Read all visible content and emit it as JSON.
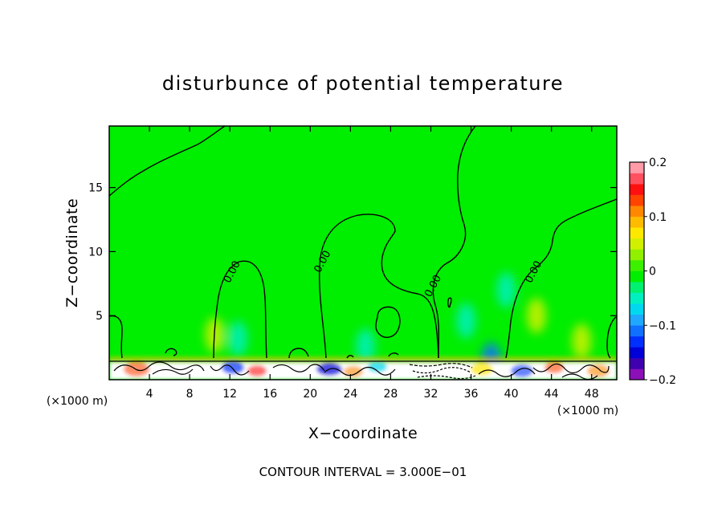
{
  "chart_data": {
    "type": "heatmap",
    "title": "disturbunce of potential temperature",
    "xlabel": "X−coordinate",
    "ylabel": "Z−coordinate",
    "x_unit": "(×1000 m)",
    "y_unit": "(×1000 m)",
    "xlim": [
      0,
      50.5
    ],
    "ylim": [
      0,
      19.8
    ],
    "x_ticks": [
      4,
      8,
      12,
      16,
      20,
      24,
      28,
      32,
      36,
      40,
      44,
      48
    ],
    "y_ticks": [
      5,
      10,
      15
    ],
    "background_value": 0.0,
    "contour_interval_text": "CONTOUR INTERVAL = 3.000E−01",
    "contour_labels": [
      {
        "text": "0.00",
        "x": 12.5,
        "z": 8.3
      },
      {
        "text": "0.00",
        "x": 21.5,
        "z": 9.1
      },
      {
        "text": "0.00",
        "x": 32.5,
        "z": 7.2
      },
      {
        "text": "0.00",
        "x": 42.5,
        "z": 8.3
      }
    ],
    "colorbar": {
      "min": -0.2,
      "max": 0.2,
      "tick_values": [
        0.2,
        0.1,
        0,
        -0.1,
        -0.2
      ],
      "tick_labels": [
        "0.2",
        "0.1",
        "0",
        "−0.1",
        "−0.2"
      ],
      "colors": [
        "#8b10b8",
        "#3f00b0",
        "#0000d8",
        "#0030ff",
        "#1070ff",
        "#20a8ff",
        "#00d8f0",
        "#00f0c0",
        "#00f070",
        "#00ee00",
        "#3cf000",
        "#90f000",
        "#d0f000",
        "#ffe800",
        "#ffbb00",
        "#ff8800",
        "#ff4400",
        "#ff1010",
        "#ff5060",
        "#ff9aa8"
      ]
    },
    "features": [
      {
        "kind": "cool_patch",
        "x": 12.8,
        "z": 3.2,
        "value": -0.05
      },
      {
        "kind": "cool_patch",
        "x": 25.5,
        "z": 2.6,
        "value": -0.04
      },
      {
        "kind": "cool_patch",
        "x": 35.5,
        "z": 4.6,
        "value": -0.05
      },
      {
        "kind": "cool_patch",
        "x": 39.5,
        "z": 7.0,
        "value": -0.04
      },
      {
        "kind": "cool_patch",
        "x": 38.0,
        "z": 1.5,
        "value": -0.12
      },
      {
        "kind": "warm_patch",
        "x": 10.5,
        "z": 3.5,
        "value": 0.04
      },
      {
        "kind": "warm_patch",
        "x": 42.5,
        "z": 5.0,
        "value": 0.04
      },
      {
        "kind": "warm_patch",
        "x": 47.0,
        "z": 3.0,
        "value": 0.04
      }
    ]
  }
}
